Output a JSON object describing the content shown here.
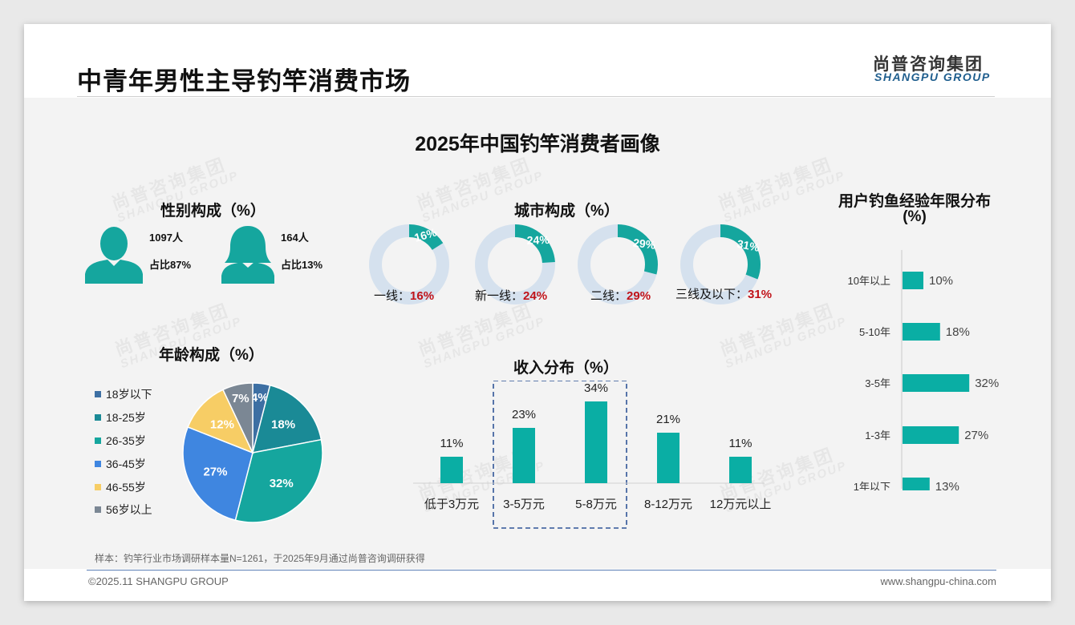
{
  "header": {
    "title": "中青年男性主导钓竿消费市场",
    "logo_cn": "尚普咨询集团",
    "logo_en": "SHANGPU GROUP"
  },
  "main_title": "2025年中国钓竿消费者画像",
  "watermark": {
    "cn": "尚普咨询集团",
    "en": "SHANGPU GROUP"
  },
  "gender": {
    "title": "性别构成（%）",
    "male": {
      "count": "1097人",
      "share": "占比87%"
    },
    "female": {
      "count": "164人",
      "share": "占比13%"
    },
    "colors": {
      "icon": "#15a69e"
    }
  },
  "age": {
    "title": "年龄构成（%）",
    "legend": [
      "18岁以下",
      "18-25岁",
      "26-35岁",
      "36-45岁",
      "46-55岁",
      "56岁以上"
    ]
  },
  "city": {
    "title": "城市构成（%）",
    "items": [
      {
        "name": "一线：",
        "value": 16,
        "label": "16%"
      },
      {
        "name": "新一线：",
        "value": 24,
        "label": "24%"
      },
      {
        "name": "二线：",
        "value": 29,
        "label": "29%"
      },
      {
        "name": "三线及以下：",
        "value": 31,
        "label": "31%"
      }
    ]
  },
  "income": {
    "title": "收入分布（%）"
  },
  "experience": {
    "title_line1": "用户钓鱼经验年限分布",
    "title_line2": "(%)"
  },
  "note": "样本：钓竿行业市场调研样本量N=1261，于2025年9月通过尚普咨询调研获得",
  "footer": {
    "left": "©2025.11 SHANGPU GROUP",
    "right": "www.shangpu-china.com"
  },
  "chart_data": [
    {
      "type": "pie",
      "categories": [
        "18岁以下",
        "18-25岁",
        "26-35岁",
        "36-45岁",
        "46-55岁",
        "56岁以上"
      ],
      "values": [
        4,
        18,
        32,
        27,
        12,
        7
      ],
      "labels": [
        "4%",
        "18%",
        "32%",
        "27%",
        "12%",
        "7%"
      ],
      "colors": [
        "#3d6fa3",
        "#1a8a96",
        "#15a69e",
        "#3f86e0",
        "#f7cd65",
        "#7b8794"
      ]
    },
    {
      "type": "bar",
      "categories": [
        "低于3万元",
        "3-5万元",
        "5-8万元",
        "8-12万元",
        "12万元以上"
      ],
      "values": [
        11,
        23,
        34,
        21,
        11
      ],
      "labels": [
        "11%",
        "23%",
        "34%",
        "21%",
        "11%"
      ],
      "highlighted": [
        "3-5万元",
        "5-8万元"
      ],
      "color": "#0aaea4"
    },
    {
      "type": "bar",
      "orientation": "horizontal",
      "categories": [
        "10年以上",
        "5-10年",
        "3-5年",
        "1-3年",
        "1年以下"
      ],
      "values": [
        10,
        18,
        32,
        27,
        13
      ],
      "labels": [
        "10%",
        "18%",
        "32%",
        "27%",
        "13%"
      ],
      "color": "#0aaea4"
    }
  ]
}
